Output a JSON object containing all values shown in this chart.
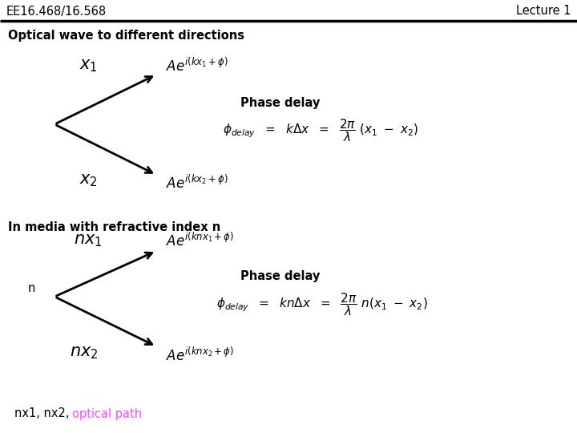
{
  "header_left": "EE16.468/16.568",
  "header_right": "Lecture 1",
  "title": "Optical wave to different directions",
  "section2_title": "In media with refractive index n",
  "phase_delay_label": "Phase delay",
  "footer_text1": "nx1, nx2, ",
  "footer_text2": "optical path",
  "footer_color1": "#000000",
  "footer_color2": "#ff44ff",
  "background_color": "#ffffff",
  "line_color": "#000000",
  "fig_width": 7.2,
  "fig_height": 5.4,
  "dpi": 100
}
